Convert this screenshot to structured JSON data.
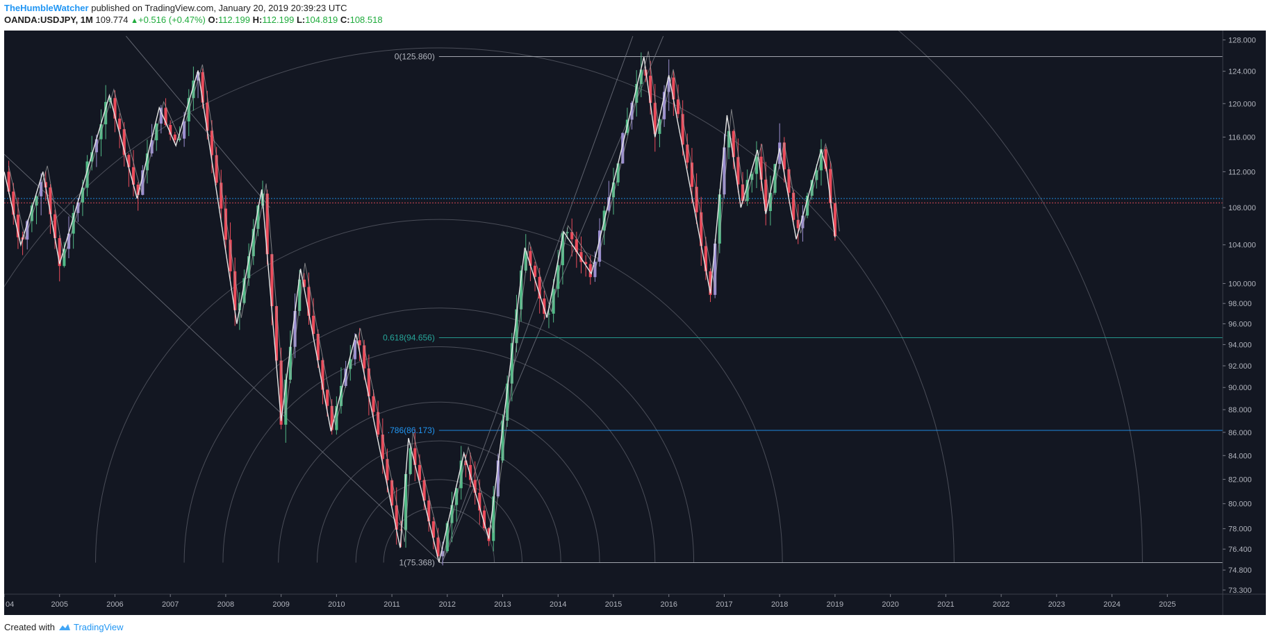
{
  "header": {
    "author": "TheHumbleWatcher",
    "published_text": "published on TradingView.com, January 20, 2019 20:39:23 UTC",
    "symbol": "OANDA:USDJPY, 1M",
    "last_price": "109.774",
    "change": "+0.516 (+0.47%)",
    "open_label": "O:",
    "open_value": "112.199",
    "high_label": "H:",
    "high_value": "112.199",
    "low_label": "L:",
    "low_value": "104.819",
    "close_label": "C:",
    "close_value": "108.518"
  },
  "footer": {
    "created_with": "Created with",
    "brand": "TradingView",
    "logo_icon": "tradingview-cloud-icon"
  },
  "colors": {
    "background": "#131722",
    "bull": "#53b987",
    "bear": "#eb4d5c",
    "bar_color_bull": "#9c8fd1",
    "fib_0618": "#26a69a",
    "fib_0786": "#2196f3",
    "fib_neutral": "#b2b5be",
    "current_price_line": "#eb4d5c",
    "aux_price_line": "#2196f3"
  },
  "chart_data": {
    "type": "candlestick",
    "title": "",
    "xlabel": "",
    "ylabel": "",
    "x_range": [
      2004.0,
      2026.0
    ],
    "ylim": [
      73.3,
      128.5
    ],
    "y_scale": "log",
    "grid": false,
    "y_axis_position": "right",
    "x_ticks": [
      "04",
      "2005",
      "2006",
      "2007",
      "2008",
      "2009",
      "2010",
      "2011",
      "2012",
      "2013",
      "2014",
      "2015",
      "2016",
      "2017",
      "2018",
      "2019",
      "2020",
      "2021",
      "2022",
      "2023",
      "2024",
      "2025"
    ],
    "y_ticks": [
      "128.000",
      "124.000",
      "120.000",
      "116.000",
      "112.000",
      "108.000",
      "104.000",
      "100.000",
      "98.000",
      "96.000",
      "94.000",
      "92.000",
      "90.000",
      "88.000",
      "86.000",
      "84.000",
      "82.000",
      "80.000",
      "78.000",
      "76.400",
      "74.800",
      "73.300"
    ],
    "fib_levels": [
      {
        "label": "0(125.860)",
        "value": 125.86
      },
      {
        "label": "0.618(94.656)",
        "value": 94.656
      },
      {
        "label": ".786(86.173)",
        "value": 86.173
      },
      {
        "label": "1(75.368)",
        "value": 75.368
      }
    ],
    "horizontal_lines": [
      {
        "value": 108.518
      },
      {
        "value": 109.0
      }
    ],
    "fib_arc_center": {
      "x": 2011.85,
      "y": 75.368
    },
    "fib_arc_radii_years": [
      1.0,
      1.5,
      2.2,
      2.9,
      3.9,
      4.6,
      6.2,
      9.3,
      12.7
    ],
    "trend_lines": [
      {
        "x1": 2004.0,
        "y1": 114.0,
        "x2": 2011.9,
        "y2": 75.3
      },
      {
        "x1": 2006.2,
        "y1": 128.5,
        "x2": 2008.8,
        "y2": 108.0
      },
      {
        "x1": 2011.9,
        "y1": 75.3,
        "x2": 2015.35,
        "y2": 128.5
      },
      {
        "x1": 2011.9,
        "y1": 75.3,
        "x2": 2015.9,
        "y2": 128.5
      }
    ],
    "swing_points": [
      {
        "x": 2004.0,
        "y": 112.0
      },
      {
        "x": 2004.3,
        "y": 104.0
      },
      {
        "x": 2004.7,
        "y": 112.0
      },
      {
        "x": 2005.0,
        "y": 102.0
      },
      {
        "x": 2005.9,
        "y": 121.0
      },
      {
        "x": 2006.4,
        "y": 109.0
      },
      {
        "x": 2006.8,
        "y": 119.5
      },
      {
        "x": 2007.1,
        "y": 115.0
      },
      {
        "x": 2007.5,
        "y": 124.1
      },
      {
        "x": 2008.2,
        "y": 96.0
      },
      {
        "x": 2008.65,
        "y": 110.0
      },
      {
        "x": 2009.0,
        "y": 87.0
      },
      {
        "x": 2009.35,
        "y": 101.5
      },
      {
        "x": 2009.9,
        "y": 86.1
      },
      {
        "x": 2010.35,
        "y": 95.0
      },
      {
        "x": 2011.15,
        "y": 76.5
      },
      {
        "x": 2011.3,
        "y": 85.5
      },
      {
        "x": 2011.85,
        "y": 75.4
      },
      {
        "x": 2012.3,
        "y": 84.2
      },
      {
        "x": 2012.75,
        "y": 77.2
      },
      {
        "x": 2013.4,
        "y": 103.7
      },
      {
        "x": 2013.8,
        "y": 96.6
      },
      {
        "x": 2014.1,
        "y": 105.4
      },
      {
        "x": 2014.6,
        "y": 101.0
      },
      {
        "x": 2015.55,
        "y": 125.8
      },
      {
        "x": 2015.75,
        "y": 116.0
      },
      {
        "x": 2016.0,
        "y": 123.5
      },
      {
        "x": 2016.75,
        "y": 99.0
      },
      {
        "x": 2017.05,
        "y": 118.6
      },
      {
        "x": 2017.3,
        "y": 108.0
      },
      {
        "x": 2017.6,
        "y": 114.5
      },
      {
        "x": 2017.75,
        "y": 107.3
      },
      {
        "x": 2018.0,
        "y": 114.7
      },
      {
        "x": 2018.3,
        "y": 104.6
      },
      {
        "x": 2018.75,
        "y": 114.5
      },
      {
        "x": 2018.85,
        "y": 112.2
      },
      {
        "x": 2019.0,
        "y": 104.8
      }
    ]
  }
}
